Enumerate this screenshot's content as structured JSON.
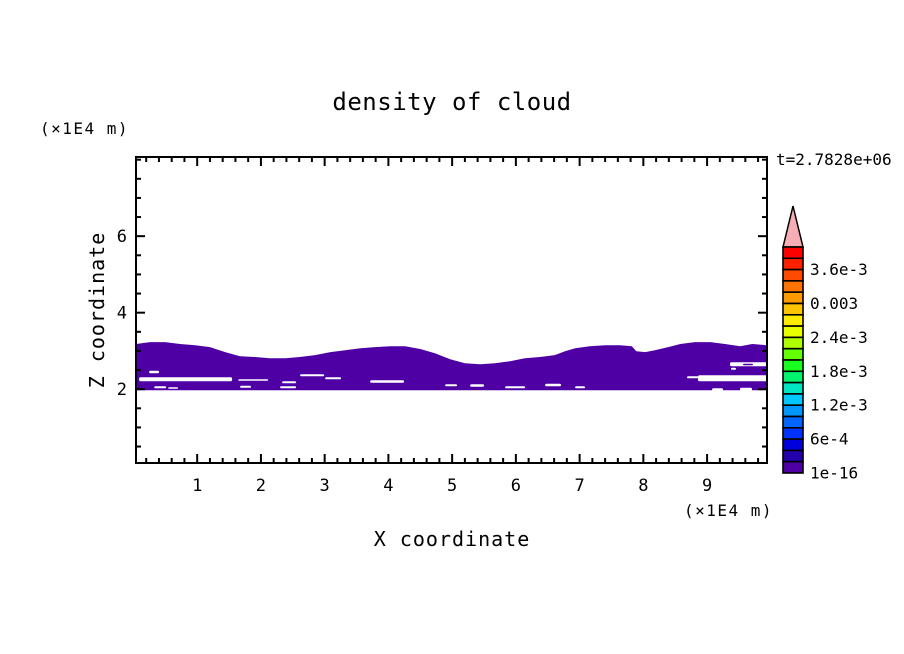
{
  "chart_data": {
    "type": "heatmap",
    "title": "density of cloud",
    "time_annotation": "t=2.7828e+06",
    "x_axis": {
      "label": "X coordinate",
      "unit": "(×1E4 m)",
      "lim": [
        0.04,
        9.94
      ],
      "major_ticks": [
        1,
        2,
        3,
        4,
        5,
        6,
        7,
        8,
        9
      ],
      "minor_step": 0.2
    },
    "z_axis": {
      "label": "Z coordinate",
      "unit": "(×1E4 m)",
      "lim": [
        0.07,
        8.07
      ],
      "major_ticks": [
        2,
        4,
        6
      ],
      "minor_step": 0.5
    },
    "colorbar": {
      "labels": [
        {
          "text": "3.6e-3",
          "boundary": 2
        },
        {
          "text": "0.003",
          "boundary": 5
        },
        {
          "text": "2.4e-3",
          "boundary": 8
        },
        {
          "text": "1.8e-3",
          "boundary": 11
        },
        {
          "text": "1.2e-3",
          "boundary": 14
        },
        {
          "text": "6e-4",
          "boundary": 17
        },
        {
          "text": "1e-16",
          "boundary": 20
        }
      ],
      "colors": [
        "#ff0000",
        "#ff2000",
        "#ff4b00",
        "#ff7300",
        "#ff9b00",
        "#ffc300",
        "#ffeb00",
        "#e8ff00",
        "#b0ff00",
        "#64ff00",
        "#19ff1e",
        "#00f56e",
        "#00e6c3",
        "#00c8ff",
        "#0096ff",
        "#0064ff",
        "#0032ff",
        "#0000dc",
        "#2300aa",
        "#4e00a5"
      ],
      "overflow_arrow_color": "#f6aeb4",
      "border_color": "#000000"
    },
    "cloud_band": {
      "level": "1e-16",
      "color": "#4e00a5",
      "bottom_z": 1.97,
      "top_profile": [
        [
          0.04,
          3.18
        ],
        [
          0.26,
          3.23
        ],
        [
          0.5,
          3.23
        ],
        [
          0.73,
          3.18
        ],
        [
          0.97,
          3.15
        ],
        [
          1.2,
          3.1
        ],
        [
          1.44,
          2.97
        ],
        [
          1.67,
          2.86
        ],
        [
          1.91,
          2.84
        ],
        [
          2.14,
          2.81
        ],
        [
          2.38,
          2.81
        ],
        [
          2.61,
          2.84
        ],
        [
          2.85,
          2.89
        ],
        [
          3.09,
          2.97
        ],
        [
          3.32,
          3.02
        ],
        [
          3.56,
          3.07
        ],
        [
          3.79,
          3.1
        ],
        [
          4.03,
          3.12
        ],
        [
          4.26,
          3.12
        ],
        [
          4.5,
          3.05
        ],
        [
          4.73,
          2.94
        ],
        [
          4.97,
          2.78
        ],
        [
          5.2,
          2.68
        ],
        [
          5.44,
          2.65
        ],
        [
          5.67,
          2.68
        ],
        [
          5.91,
          2.73
        ],
        [
          6.14,
          2.81
        ],
        [
          6.38,
          2.84
        ],
        [
          6.61,
          2.89
        ],
        [
          6.77,
          2.99
        ],
        [
          6.93,
          3.07
        ],
        [
          7.16,
          3.12
        ],
        [
          7.4,
          3.15
        ],
        [
          7.63,
          3.15
        ],
        [
          7.82,
          3.12
        ],
        [
          7.89,
          2.99
        ],
        [
          8.03,
          2.97
        ],
        [
          8.18,
          3.02
        ],
        [
          8.39,
          3.1
        ],
        [
          8.58,
          3.18
        ],
        [
          8.81,
          3.23
        ],
        [
          9.05,
          3.23
        ],
        [
          9.28,
          3.18
        ],
        [
          9.52,
          3.12
        ],
        [
          9.71,
          3.18
        ],
        [
          9.94,
          3.15
        ]
      ]
    },
    "white_gaps": [
      [
        0.089,
        2.314,
        1.459,
        0.105
      ],
      [
        1.643,
        2.261,
        0.471,
        0.039
      ],
      [
        0.246,
        2.484,
        0.157,
        0.065
      ],
      [
        2.332,
        2.209,
        0.22,
        0.052
      ],
      [
        2.615,
        2.392,
        0.376,
        0.052
      ],
      [
        3.007,
        2.314,
        0.251,
        0.052
      ],
      [
        3.713,
        2.235,
        0.533,
        0.065
      ],
      [
        0.325,
        2.078,
        0.188,
        0.052
      ],
      [
        0.544,
        2.052,
        0.157,
        0.039
      ],
      [
        1.674,
        2.092,
        0.173,
        0.052
      ],
      [
        2.301,
        2.078,
        0.251,
        0.052
      ],
      [
        4.889,
        2.131,
        0.188,
        0.052
      ],
      [
        5.282,
        2.131,
        0.22,
        0.065
      ],
      [
        5.831,
        2.078,
        0.314,
        0.052
      ],
      [
        6.458,
        2.144,
        0.251,
        0.065
      ],
      [
        6.929,
        2.078,
        0.157,
        0.052
      ],
      [
        8.858,
        2.366,
        1.082,
        0.157
      ],
      [
        8.685,
        2.34,
        0.188,
        0.052
      ],
      [
        9.36,
        2.706,
        0.58,
        0.105
      ],
      [
        9.375,
        2.562,
        0.078,
        0.052
      ],
      [
        9.078,
        2.026,
        0.173,
        0.078
      ],
      [
        9.517,
        2.039,
        0.188,
        0.078
      ]
    ],
    "purple_dashes": [
      [
        9.564,
        2.667,
        0.157,
        0.039
      ]
    ]
  }
}
